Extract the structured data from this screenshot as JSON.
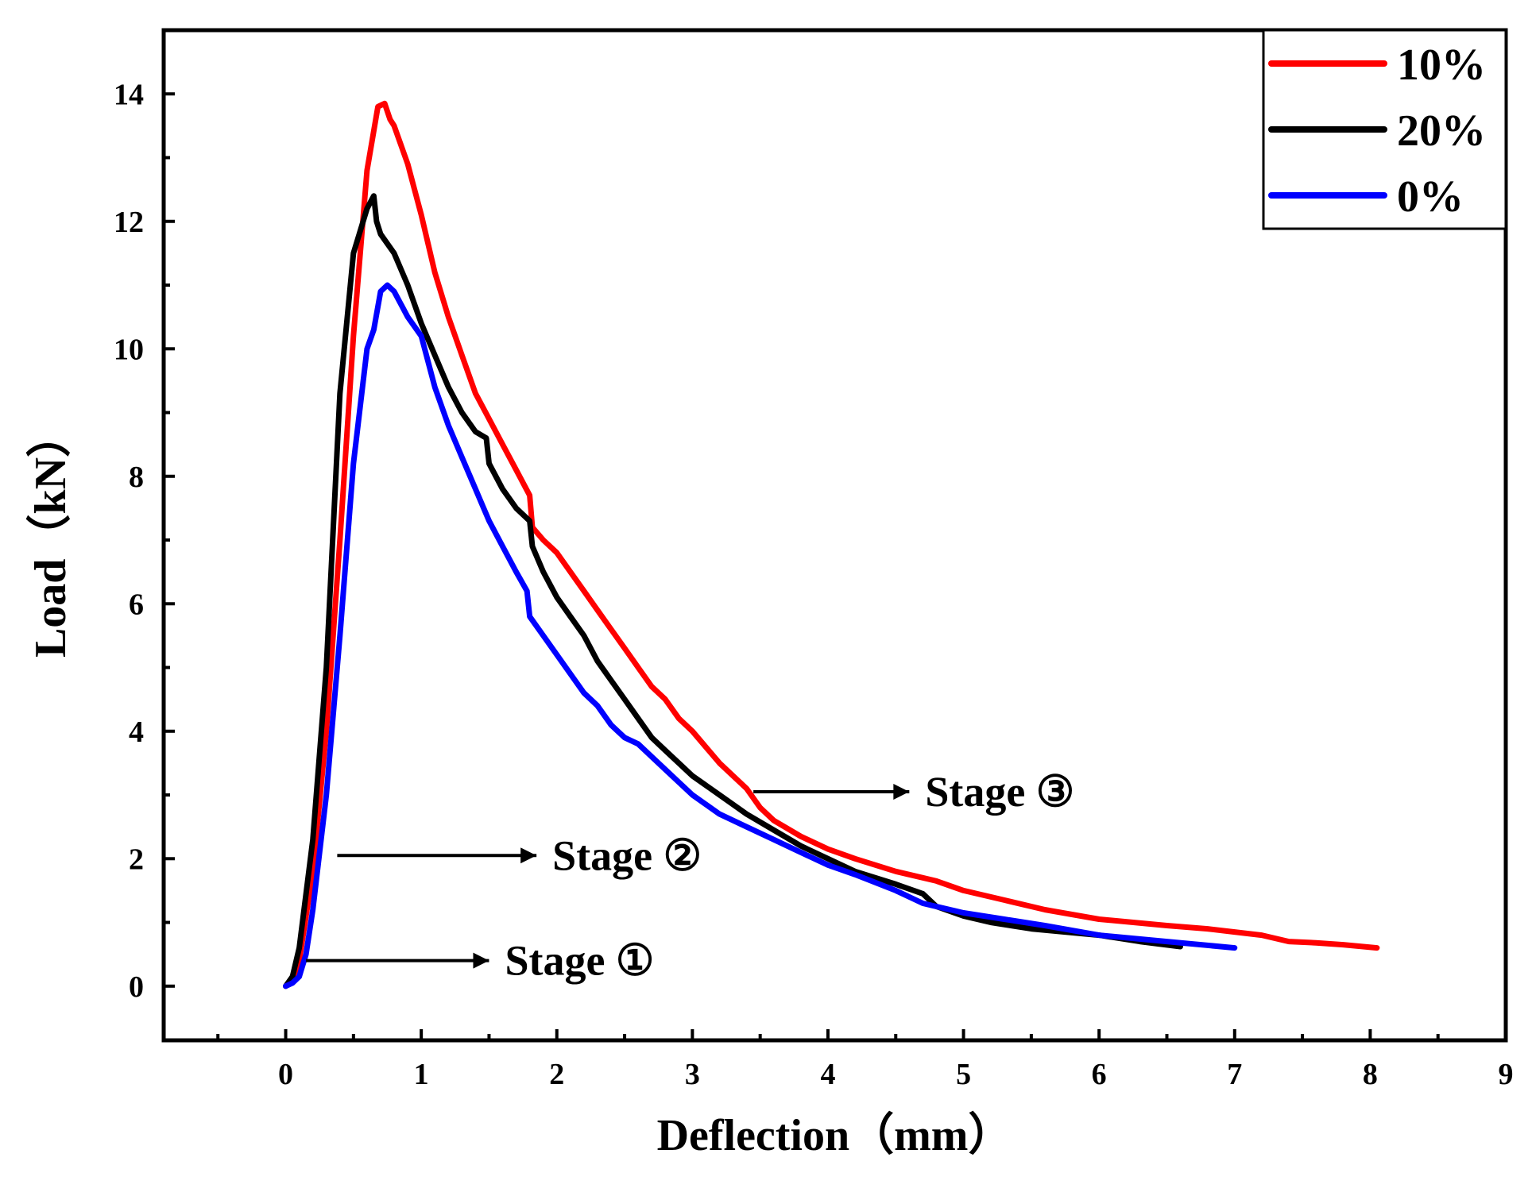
{
  "chart_data": {
    "type": "line",
    "title": "",
    "xlabel": "Deflection（mm）",
    "ylabel": "Load（kN）",
    "xlim": [
      -0.9,
      9
    ],
    "ylim": [
      -0.85,
      15
    ],
    "xticks": [
      0,
      1,
      2,
      3,
      4,
      5,
      6,
      7,
      8,
      9
    ],
    "yticks": [
      0,
      2,
      4,
      6,
      8,
      10,
      12,
      14
    ],
    "legend_position": "top-right",
    "series": [
      {
        "name": "10%",
        "color": "#ff0000",
        "x": [
          0,
          0.05,
          0.1,
          0.2,
          0.3,
          0.4,
          0.5,
          0.6,
          0.68,
          0.73,
          0.77,
          0.8,
          0.9,
          1.0,
          1.1,
          1.2,
          1.3,
          1.4,
          1.5,
          1.6,
          1.7,
          1.8,
          1.82,
          1.9,
          2.0,
          2.1,
          2.2,
          2.3,
          2.4,
          2.5,
          2.6,
          2.7,
          2.8,
          2.9,
          3.0,
          3.2,
          3.4,
          3.5,
          3.6,
          3.8,
          4.0,
          4.2,
          4.5,
          4.8,
          5.0,
          5.3,
          5.6,
          6.0,
          6.5,
          6.8,
          7.0,
          7.2,
          7.4,
          7.6,
          7.8,
          8.05
        ],
        "y": [
          0,
          0.1,
          0.4,
          1.8,
          4.0,
          7.0,
          10.2,
          12.8,
          13.8,
          13.85,
          13.6,
          13.5,
          12.9,
          12.1,
          11.2,
          10.5,
          9.9,
          9.3,
          8.9,
          8.5,
          8.1,
          7.7,
          7.2,
          7.0,
          6.8,
          6.5,
          6.2,
          5.9,
          5.6,
          5.3,
          5.0,
          4.7,
          4.5,
          4.2,
          4.0,
          3.5,
          3.1,
          2.8,
          2.6,
          2.35,
          2.15,
          2.0,
          1.8,
          1.65,
          1.5,
          1.35,
          1.2,
          1.05,
          0.95,
          0.9,
          0.85,
          0.8,
          0.7,
          0.68,
          0.65,
          0.6
        ]
      },
      {
        "name": "20%",
        "color": "#000000",
        "x": [
          0,
          0.05,
          0.1,
          0.2,
          0.3,
          0.4,
          0.5,
          0.6,
          0.65,
          0.67,
          0.7,
          0.8,
          0.9,
          1.0,
          1.1,
          1.2,
          1.3,
          1.4,
          1.48,
          1.5,
          1.6,
          1.7,
          1.8,
          1.82,
          1.9,
          2.0,
          2.1,
          2.2,
          2.3,
          2.4,
          2.5,
          2.6,
          2.7,
          2.8,
          2.9,
          3.0,
          3.2,
          3.4,
          3.6,
          3.8,
          4.0,
          4.2,
          4.5,
          4.7,
          4.8,
          5.0,
          5.2,
          5.5,
          6.0,
          6.3,
          6.6
        ],
        "y": [
          0,
          0.15,
          0.6,
          2.3,
          5.0,
          9.3,
          11.5,
          12.2,
          12.4,
          12.0,
          11.8,
          11.5,
          11.0,
          10.4,
          9.9,
          9.4,
          9.0,
          8.7,
          8.6,
          8.2,
          7.8,
          7.5,
          7.3,
          6.9,
          6.5,
          6.1,
          5.8,
          5.5,
          5.1,
          4.8,
          4.5,
          4.2,
          3.9,
          3.7,
          3.5,
          3.3,
          3.0,
          2.7,
          2.45,
          2.2,
          2.0,
          1.8,
          1.6,
          1.45,
          1.25,
          1.1,
          1.0,
          0.9,
          0.8,
          0.7,
          0.62
        ]
      },
      {
        "name": "0%",
        "color": "#0000ff",
        "x": [
          0,
          0.05,
          0.1,
          0.15,
          0.2,
          0.3,
          0.4,
          0.5,
          0.6,
          0.65,
          0.7,
          0.75,
          0.8,
          0.85,
          0.9,
          1.0,
          1.1,
          1.2,
          1.3,
          1.4,
          1.5,
          1.6,
          1.7,
          1.78,
          1.8,
          1.9,
          2.0,
          2.1,
          2.2,
          2.3,
          2.4,
          2.45,
          2.5,
          2.6,
          2.7,
          2.8,
          2.9,
          3.0,
          3.2,
          3.4,
          3.6,
          3.8,
          4.0,
          4.2,
          4.5,
          4.7,
          5.0,
          5.3,
          5.6,
          6.0,
          6.5,
          7.0
        ],
        "y": [
          0,
          0.05,
          0.15,
          0.5,
          1.2,
          3.0,
          5.5,
          8.2,
          10.0,
          10.3,
          10.9,
          11.0,
          10.9,
          10.7,
          10.5,
          10.2,
          9.4,
          8.8,
          8.3,
          7.8,
          7.3,
          6.9,
          6.5,
          6.2,
          5.8,
          5.5,
          5.2,
          4.9,
          4.6,
          4.4,
          4.1,
          4.0,
          3.9,
          3.8,
          3.6,
          3.4,
          3.2,
          3.0,
          2.7,
          2.5,
          2.3,
          2.1,
          1.9,
          1.75,
          1.5,
          1.3,
          1.15,
          1.05,
          0.95,
          0.8,
          0.7,
          0.6
        ]
      }
    ],
    "annotations": [
      {
        "text": "Stage ①",
        "arrow_from": [
          0.15,
          0.4
        ],
        "arrow_to": [
          1.5,
          0.4
        ]
      },
      {
        "text": "Stage ②",
        "arrow_from": [
          0.38,
          2.05
        ],
        "arrow_to": [
          1.85,
          2.05
        ]
      },
      {
        "text": "Stage ③",
        "arrow_from": [
          3.45,
          3.05
        ],
        "arrow_to": [
          4.6,
          3.05
        ]
      }
    ]
  }
}
